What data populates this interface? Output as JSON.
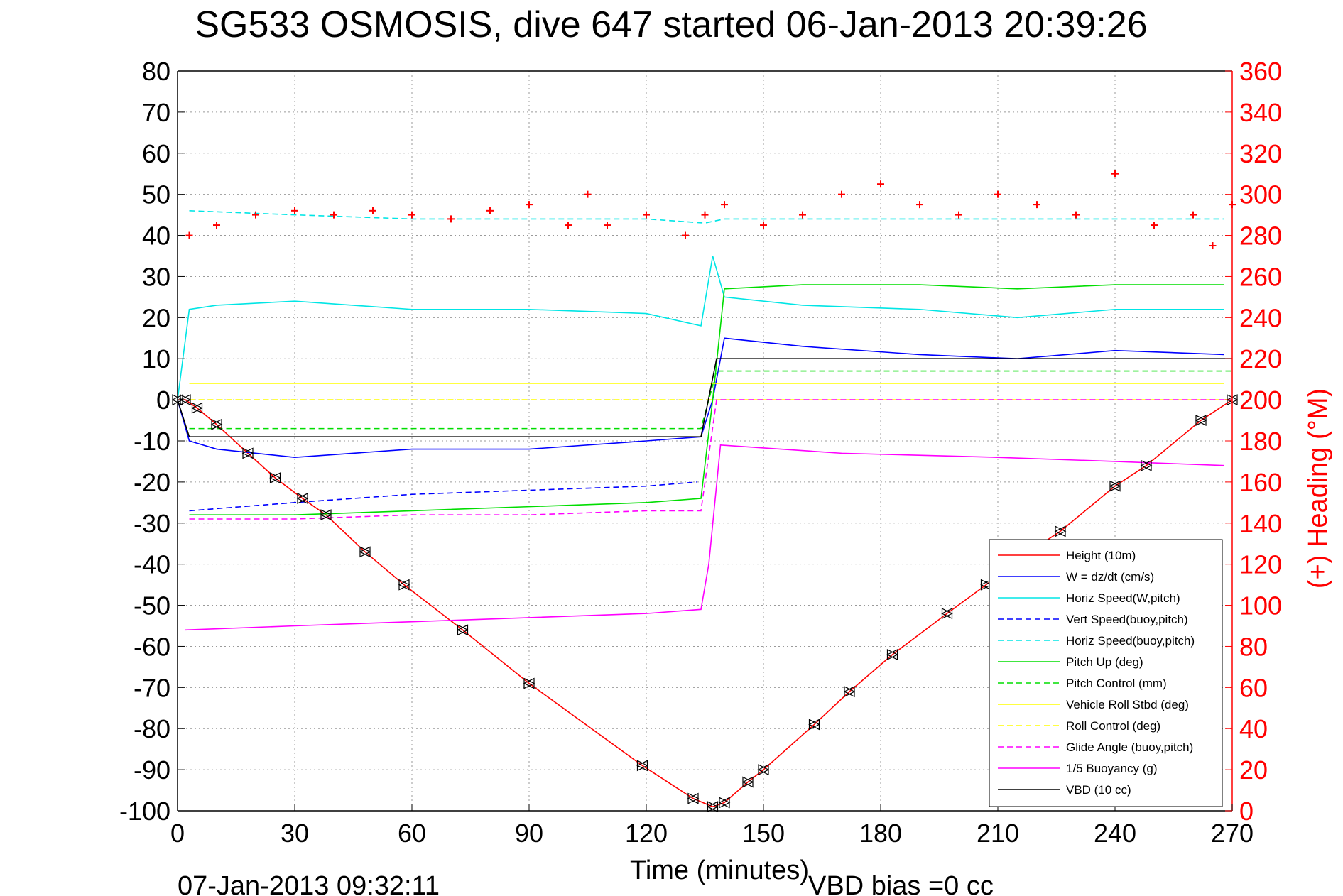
{
  "chart_data": {
    "type": "line",
    "title": "SG533 OSMOSIS, dive 647 started 06-Jan-2013 20:39:26",
    "xlabel": "Time (minutes)",
    "ylabel": "",
    "y2label": "(+) Heading (°M)",
    "xlim": [
      0,
      270
    ],
    "ylim": [
      -100,
      80
    ],
    "y2lim": [
      0,
      360
    ],
    "x_ticks": [
      0,
      30,
      60,
      90,
      120,
      150,
      180,
      210,
      240,
      270
    ],
    "y_ticks": [
      -100,
      -90,
      -80,
      -70,
      -60,
      -50,
      -40,
      -30,
      -20,
      -10,
      0,
      10,
      20,
      30,
      40,
      50,
      60,
      70,
      80
    ],
    "y2_ticks": [
      0,
      20,
      40,
      60,
      80,
      100,
      120,
      140,
      160,
      180,
      200,
      220,
      240,
      260,
      280,
      300,
      320,
      340,
      360
    ],
    "grid": true,
    "legend_position": "bottom-right",
    "colors": {
      "height": "#ff0000",
      "w": "#0000ff",
      "horiz": "#00e5e5",
      "pitch": "#00dd00",
      "roll": "#ffff00",
      "glide": "#ff00ff",
      "buoy": "#ff00ff",
      "vbd": "#000000",
      "heading": "#ff0000"
    },
    "series": [
      {
        "name": "Height (10m)",
        "style": "solid",
        "x": [
          0,
          2,
          5,
          10,
          18,
          25,
          32,
          38,
          48,
          58,
          73,
          90,
          119,
          132,
          137,
          140,
          146,
          150,
          163,
          172,
          183,
          197,
          207,
          218,
          226,
          240,
          248,
          262,
          270
        ],
        "values": [
          0,
          0,
          -2,
          -6,
          -13,
          -19,
          -24,
          -28,
          -37,
          -45,
          -56,
          -69,
          -89,
          -97,
          -99,
          -98,
          -93,
          -90,
          -79,
          -71,
          -62,
          -52,
          -45,
          -37,
          -32,
          -21,
          -16,
          -5,
          0
        ]
      },
      {
        "name": "W = dz/dt (cm/s)",
        "style": "solid",
        "x": [
          0,
          3,
          10,
          30,
          60,
          90,
          120,
          134,
          137,
          140,
          160,
          190,
          215,
          240,
          268
        ],
        "values": [
          0,
          -10,
          -12,
          -14,
          -12,
          -12,
          -10,
          -9,
          0,
          15,
          13,
          11,
          10,
          12,
          11
        ]
      },
      {
        "name": "Horiz Speed(W,pitch)",
        "style": "solid",
        "x": [
          0,
          3,
          10,
          30,
          60,
          90,
          120,
          134,
          137,
          140,
          160,
          190,
          215,
          240,
          268
        ],
        "values": [
          0,
          22,
          23,
          24,
          22,
          22,
          21,
          18,
          35,
          25,
          23,
          22,
          20,
          22,
          22
        ]
      },
      {
        "name": "Vert Speed(buoy,pitch)",
        "style": "dashed",
        "x": [
          3,
          30,
          60,
          90,
          120,
          133
        ],
        "values": [
          -27,
          -25,
          -23,
          -22,
          -21,
          -20
        ]
      },
      {
        "name": "Horiz Speed(buoy,pitch)",
        "style": "dashed",
        "x": [
          3,
          30,
          60,
          90,
          120,
          135,
          140,
          268
        ],
        "values": [
          46,
          45,
          44,
          44,
          44,
          43,
          44,
          44
        ]
      },
      {
        "name": "Pitch Up (deg)",
        "style": "solid",
        "x": [
          3,
          30,
          60,
          90,
          120,
          134,
          137,
          140,
          160,
          190,
          215,
          240,
          268
        ],
        "values": [
          -28,
          -28,
          -27,
          -26,
          -25,
          -24,
          0,
          27,
          28,
          28,
          27,
          28,
          28
        ]
      },
      {
        "name": "Pitch Control (mm)",
        "style": "dashed",
        "x": [
          3,
          134,
          138,
          270
        ],
        "values": [
          -7,
          -7,
          7,
          7
        ]
      },
      {
        "name": "Vehicle Roll Stbd (deg)",
        "style": "solid",
        "x": [
          3,
          60,
          120,
          134,
          140,
          200,
          268
        ],
        "values": [
          4,
          4,
          4,
          4,
          4,
          4,
          4
        ]
      },
      {
        "name": "Roll Control (deg)",
        "style": "dashed",
        "x": [
          3,
          134,
          138,
          270
        ],
        "values": [
          0,
          0,
          0,
          0
        ]
      },
      {
        "name": "Glide Angle (buoy,pitch)",
        "style": "dashed",
        "x": [
          3,
          30,
          60,
          90,
          120,
          134,
          138,
          270
        ],
        "values": [
          -29,
          -29,
          -28,
          -28,
          -27,
          -27,
          0,
          0
        ]
      },
      {
        "name": "1/5 Buoyancy (g)",
        "style": "solid",
        "x": [
          2,
          30,
          60,
          90,
          120,
          134,
          136,
          139,
          170,
          210,
          240,
          268
        ],
        "values": [
          -56,
          -55,
          -54,
          -53,
          -52,
          -51,
          -40,
          -11,
          -13,
          -14,
          -15,
          -16
        ]
      },
      {
        "name": "VBD (10 cc)",
        "style": "solid",
        "x": [
          0,
          3,
          134,
          138,
          270
        ],
        "values": [
          0,
          -9,
          -9,
          10,
          10
        ]
      }
    ],
    "heading_series": {
      "name": "(+) Heading",
      "x": [
        3,
        10,
        20,
        30,
        40,
        50,
        60,
        70,
        80,
        90,
        100,
        105,
        110,
        120,
        130,
        135,
        140,
        150,
        160,
        170,
        180,
        190,
        200,
        210,
        220,
        230,
        240,
        250,
        260,
        265,
        270
      ],
      "values": [
        280,
        285,
        290,
        292,
        290,
        292,
        290,
        288,
        292,
        295,
        285,
        300,
        285,
        290,
        280,
        290,
        295,
        285,
        290,
        300,
        305,
        295,
        290,
        300,
        295,
        290,
        310,
        285,
        290,
        275,
        295
      ]
    },
    "annotations": [
      "07-Jan-2013 09:32:11",
      "VBD bias =0 cc"
    ]
  }
}
